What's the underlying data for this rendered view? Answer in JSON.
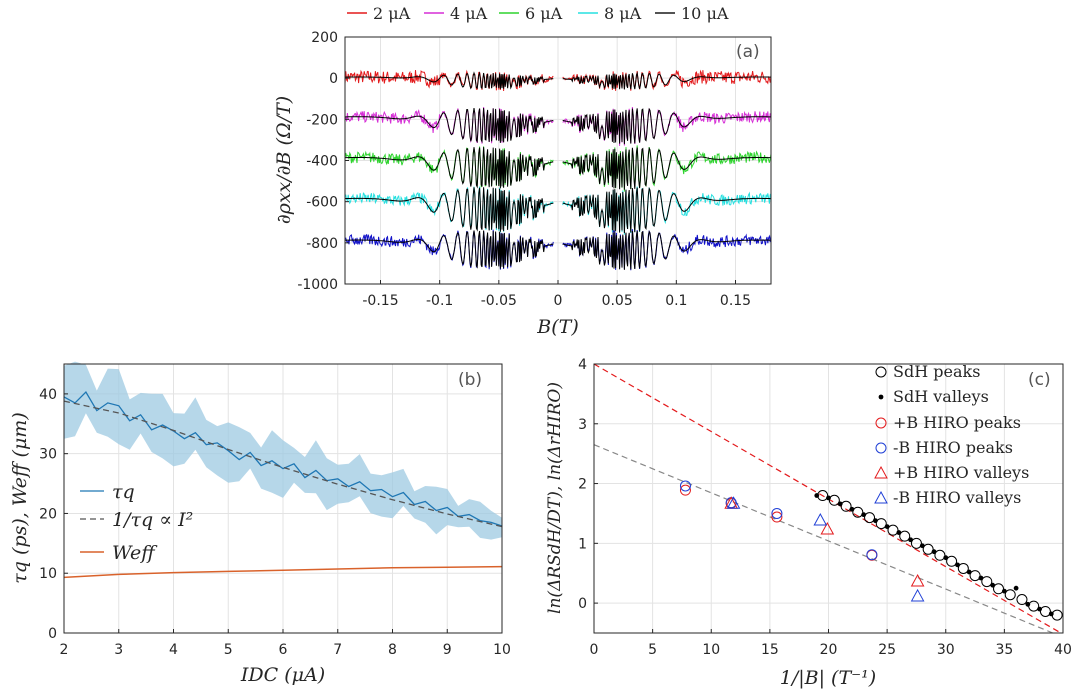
{
  "chart_data": [
    {
      "panel": "(a)",
      "type": "line",
      "xlabel": "B(T)",
      "ylabel": "∂ρxx/∂B (Ω/T)",
      "xlim": [
        -0.18,
        0.18
      ],
      "ylim": [
        -1000,
        200
      ],
      "xticks": [
        -0.15,
        -0.1,
        -0.05,
        0,
        0.05,
        0.1,
        0.15
      ],
      "xtick_labels": [
        "-0.15",
        "-0.1",
        "-0.05",
        "0",
        "0.05",
        "0.1",
        "0.15"
      ],
      "yticks": [
        -1000,
        -800,
        -600,
        -400,
        -200,
        0,
        200
      ],
      "ytick_labels": [
        "-1000",
        "-800",
        "-600",
        "-400",
        "-200",
        "0",
        "200"
      ],
      "grid": true,
      "legend_position": "top, outside",
      "series": [
        {
          "name": "2 μA",
          "label": "2 μA",
          "color": "#e31a1c",
          "offset": 0,
          "amplitude": 25
        },
        {
          "name": "4 μA",
          "label": "4 μA",
          "color": "#d62fd6",
          "offset": -200,
          "amplitude": 55
        },
        {
          "name": "6 μA",
          "label": "6 μA",
          "color": "#2fd42f",
          "offset": -400,
          "amplitude": 65
        },
        {
          "name": "8 μA",
          "label": "8 μA",
          "color": "#26e0e0",
          "offset": -600,
          "amplitude": 70
        },
        {
          "name": "10 μA",
          "label": "10 μA",
          "color": "#1a1a1a",
          "offset": -800,
          "amplitude": 60
        }
      ],
      "fit_color": "#000000",
      "data_color_bottom_trace": "#1010c8",
      "excluded_region": [
        -0.004,
        0.004
      ]
    },
    {
      "panel": "(b)",
      "type": "line",
      "xlabel": "IDC (μA)",
      "ylabel": "τq (ps), Weff (μm)",
      "xlim": [
        2,
        10
      ],
      "ylim": [
        0,
        45
      ],
      "xticks": [
        2,
        3,
        4,
        5,
        6,
        7,
        8,
        9,
        10
      ],
      "xtick_labels": [
        "2",
        "3",
        "4",
        "5",
        "6",
        "7",
        "8",
        "9",
        "10"
      ],
      "yticks": [
        0,
        10,
        20,
        30,
        40
      ],
      "ytick_labels": [
        "0",
        "10",
        "20",
        "30",
        "40"
      ],
      "grid": true,
      "legend_position": "left",
      "series": [
        {
          "name": "τq",
          "color": "#1f77b4",
          "x": [
            2.0,
            2.2,
            2.4,
            2.6,
            2.8,
            3.0,
            3.2,
            3.4,
            3.6,
            3.8,
            4.0,
            4.2,
            4.4,
            4.6,
            4.8,
            5.0,
            5.2,
            5.4,
            5.6,
            5.8,
            6.0,
            6.2,
            6.4,
            6.6,
            6.8,
            7.0,
            7.2,
            7.4,
            7.6,
            7.8,
            8.0,
            8.2,
            8.4,
            8.6,
            8.8,
            9.0,
            9.2,
            9.4,
            9.6,
            9.8,
            10.0
          ],
          "y": [
            39.5,
            38.5,
            40.3,
            37.2,
            38.5,
            38.0,
            35.5,
            36.5,
            34.0,
            34.8,
            33.8,
            32.5,
            33.5,
            31.5,
            31.8,
            30.5,
            29.0,
            30.2,
            28.0,
            28.8,
            27.5,
            28.3,
            26.0,
            27.2,
            25.5,
            25.8,
            24.5,
            25.3,
            23.8,
            24.0,
            22.8,
            23.5,
            21.5,
            22.0,
            20.5,
            21.0,
            19.5,
            19.8,
            18.8,
            18.5,
            17.9
          ]
        },
        {
          "name": "1/τq ∝ I²",
          "color": "#555555",
          "style": "dashed",
          "x": [
            2,
            3,
            4,
            5,
            6,
            7,
            8,
            9,
            10
          ],
          "y": [
            38.8,
            36.8,
            33.9,
            30.7,
            27.7,
            24.9,
            22.3,
            19.9,
            17.8
          ]
        },
        {
          "name": "Weff",
          "color": "#d9622b",
          "x": [
            2,
            3,
            4,
            5,
            6,
            7,
            8,
            9,
            10
          ],
          "y": [
            9.3,
            9.8,
            10.1,
            10.3,
            10.5,
            10.7,
            10.9,
            11.0,
            11.1
          ]
        }
      ],
      "uncertainty_band": {
        "series": "τq",
        "color": "#9ecae1",
        "half_width": [
          5.2,
          4.8,
          4.5,
          4.2,
          4.0,
          3.6,
          3.3,
          2.9,
          2.0
        ]
      }
    },
    {
      "panel": "(c)",
      "type": "scatter",
      "xlabel": "1/|B| (T⁻¹)",
      "ylabel": "ln(ΔRSdH/DT), ln(ΔrHIRO)",
      "xlim": [
        0,
        40
      ],
      "ylim": [
        -0.5,
        4
      ],
      "xticks": [
        0,
        5,
        10,
        15,
        20,
        25,
        30,
        35,
        40
      ],
      "xtick_labels": [
        "0",
        "5",
        "10",
        "15",
        "20",
        "25",
        "30",
        "35",
        "40"
      ],
      "yticks": [
        0,
        1,
        2,
        3,
        4
      ],
      "ytick_labels": [
        "0",
        "1",
        "2",
        "3",
        "4"
      ],
      "grid": true,
      "legend_position": "top-right",
      "fit_lines": [
        {
          "name": "SdH fit",
          "color": "#e31a1c",
          "style": "dashed",
          "intercept": 4.0,
          "slope": -0.113
        },
        {
          "name": "HIRO fit",
          "color": "#888888",
          "style": "dashed",
          "intercept": 2.65,
          "slope": -0.0805
        }
      ],
      "series": [
        {
          "name": "SdH peaks",
          "marker": "open-circle",
          "color": "#000000",
          "x": [
            19.5,
            20.5,
            21.5,
            22.5,
            23.5,
            24.5,
            25.5,
            26.5,
            27.5,
            28.5,
            29.5,
            30.5,
            31.5,
            32.5,
            33.5,
            34.5,
            35.5,
            36.5,
            37.5,
            38.5,
            39.5
          ],
          "y": [
            1.8,
            1.72,
            1.62,
            1.52,
            1.43,
            1.33,
            1.22,
            1.12,
            1.0,
            0.9,
            0.8,
            0.7,
            0.58,
            0.46,
            0.36,
            0.24,
            0.14,
            0.06,
            -0.05,
            -0.14,
            -0.2
          ]
        },
        {
          "name": "SdH valleys",
          "marker": "dot",
          "color": "#000000",
          "x": [
            19.0,
            20.0,
            21.0,
            22.0,
            23.0,
            24.0,
            25.0,
            26.0,
            27.0,
            28.0,
            29.0,
            30.0,
            31.0,
            32.0,
            33.0,
            34.0,
            35.0,
            36.0,
            37.0,
            38.0,
            39.0
          ],
          "y": [
            1.8,
            1.76,
            1.66,
            1.57,
            1.48,
            1.38,
            1.28,
            1.18,
            1.06,
            0.96,
            0.86,
            0.76,
            0.64,
            0.52,
            0.42,
            0.3,
            0.2,
            0.25,
            -0.02,
            -0.1,
            -0.18
          ]
        },
        {
          "name": "+B HIRO peaks",
          "marker": "open-circle",
          "color": "#e31a1c",
          "x": [
            7.8,
            11.7,
            15.6,
            23.7
          ],
          "y": [
            1.89,
            1.67,
            1.44,
            0.8
          ]
        },
        {
          "name": "-B HIRO peaks",
          "marker": "open-circle",
          "color": "#1f3fd6",
          "x": [
            7.8,
            11.7,
            15.6,
            23.7
          ],
          "y": [
            1.96,
            1.68,
            1.5,
            0.81
          ]
        },
        {
          "name": "+B HIRO valleys",
          "marker": "open-triangle",
          "color": "#e31a1c",
          "x": [
            11.7,
            19.9,
            27.6
          ],
          "y": [
            1.67,
            1.24,
            0.37
          ]
        },
        {
          "name": "-B HIRO valleys",
          "marker": "open-triangle",
          "color": "#1f3fd6",
          "x": [
            11.9,
            19.3,
            27.6
          ],
          "y": [
            1.67,
            1.39,
            0.12
          ]
        }
      ]
    }
  ]
}
